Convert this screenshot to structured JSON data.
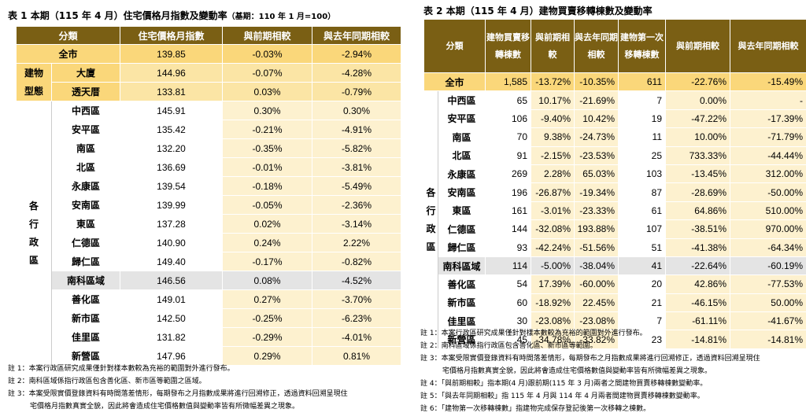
{
  "table1": {
    "title": "表 1 本期（115 年 4 月）住宅價格月指數及變動率",
    "base_note": "（基期：110 年 1 月=100）",
    "headers": [
      "分類",
      "住宅價格月指數",
      "與前期相較",
      "與去年同期相較"
    ],
    "total": {
      "name": "全市",
      "index": "139.85",
      "mom": "-0.03%",
      "yoy": "-2.94%"
    },
    "building_group_label": [
      "建物",
      "型態"
    ],
    "building_rows": [
      {
        "name": "大廈",
        "index": "144.96",
        "mom": "-0.07%",
        "yoy": "-4.28%"
      },
      {
        "name": "透天厝",
        "index": "133.81",
        "mom": "0.03%",
        "yoy": "-0.79%"
      }
    ],
    "district_group_label": [
      "各",
      "行",
      "政",
      "區"
    ],
    "district_rows": [
      {
        "name": "中西區",
        "index": "145.91",
        "mom": "0.30%",
        "yoy": "0.30%"
      },
      {
        "name": "安平區",
        "index": "135.42",
        "mom": "-0.21%",
        "yoy": "-4.91%"
      },
      {
        "name": "南區",
        "index": "132.20",
        "mom": "-0.35%",
        "yoy": "-5.82%"
      },
      {
        "name": "北區",
        "index": "136.69",
        "mom": "-0.01%",
        "yoy": "-3.81%"
      },
      {
        "name": "永康區",
        "index": "139.54",
        "mom": "-0.18%",
        "yoy": "-5.49%"
      },
      {
        "name": "安南區",
        "index": "139.99",
        "mom": "-0.05%",
        "yoy": "-2.36%"
      },
      {
        "name": "東區",
        "index": "137.28",
        "mom": "0.02%",
        "yoy": "-3.14%"
      },
      {
        "name": "仁德區",
        "index": "140.90",
        "mom": "0.24%",
        "yoy": "2.22%"
      },
      {
        "name": "歸仁區",
        "index": "149.40",
        "mom": "-0.17%",
        "yoy": "-0.82%"
      },
      {
        "name": "南科區域",
        "index": "146.56",
        "mom": "0.08%",
        "yoy": "-4.52%",
        "highlight": true
      },
      {
        "name": "善化區",
        "index": "149.01",
        "mom": "0.27%",
        "yoy": "-3.70%"
      },
      {
        "name": "新市區",
        "index": "142.50",
        "mom": "-0.25%",
        "yoy": "-6.23%"
      },
      {
        "name": "佳里區",
        "index": "131.82",
        "mom": "-0.29%",
        "yoy": "-4.01%"
      },
      {
        "name": "新營區",
        "index": "147.96",
        "mom": "0.29%",
        "yoy": "0.81%"
      }
    ],
    "notes": [
      "註 1：本案行政區研究成果僅針對樣本數較為充裕的範圍對外進行發布。",
      "註 2：南科區域係指行政區包含善化區、新市區等範圍之區域。",
      "註 3：本案受限實價登錄資料有時間落差情形，每期發布之月指數成果將進行回溯修正，透過資料回溯呈現住",
      "宅價格月指數真實全貌，因此將會造成住宅價格數值與變動率皆有所微幅差異之現象。"
    ]
  },
  "table2": {
    "title": "表 2 本期（115 年 4 月）建物買賣移轉棟數及變動率",
    "headers": [
      "分類",
      "建物買賣移轉棟數",
      "與前期相較",
      "與去年同期相較",
      "建物第一次移轉棟數",
      "與前期相較",
      "與去年同期相較"
    ],
    "total": {
      "name": "全市",
      "cnt": "1,585",
      "mom": "-13.72%",
      "yoy": "-10.35%",
      "first": "611",
      "fmom": "-22.76%",
      "fyoy": "-15.49%"
    },
    "district_group_label": [
      "各",
      "行",
      "政",
      "區"
    ],
    "rows": [
      {
        "name": "中西區",
        "cnt": "65",
        "mom": "10.17%",
        "yoy": "-21.69%",
        "first": "7",
        "fmom": "0.00%",
        "fyoy": "-"
      },
      {
        "name": "安平區",
        "cnt": "106",
        "mom": "-9.40%",
        "yoy": "10.42%",
        "first": "19",
        "fmom": "-47.22%",
        "fyoy": "-17.39%"
      },
      {
        "name": "南區",
        "cnt": "70",
        "mom": "9.38%",
        "yoy": "-24.73%",
        "first": "11",
        "fmom": "10.00%",
        "fyoy": "-71.79%"
      },
      {
        "name": "北區",
        "cnt": "91",
        "mom": "-2.15%",
        "yoy": "-23.53%",
        "first": "25",
        "fmom": "733.33%",
        "fyoy": "-44.44%"
      },
      {
        "name": "永康區",
        "cnt": "269",
        "mom": "2.28%",
        "yoy": "65.03%",
        "first": "103",
        "fmom": "-13.45%",
        "fyoy": "312.00%"
      },
      {
        "name": "安南區",
        "cnt": "196",
        "mom": "-26.87%",
        "yoy": "-19.34%",
        "first": "87",
        "fmom": "-28.69%",
        "fyoy": "-50.00%"
      },
      {
        "name": "東區",
        "cnt": "161",
        "mom": "-3.01%",
        "yoy": "-23.33%",
        "first": "61",
        "fmom": "64.86%",
        "fyoy": "510.00%"
      },
      {
        "name": "仁德區",
        "cnt": "144",
        "mom": "-32.08%",
        "yoy": "193.88%",
        "first": "107",
        "fmom": "-38.51%",
        "fyoy": "970.00%"
      },
      {
        "name": "歸仁區",
        "cnt": "93",
        "mom": "-42.24%",
        "yoy": "-51.56%",
        "first": "51",
        "fmom": "-41.38%",
        "fyoy": "-64.34%"
      },
      {
        "name": "南科區域",
        "cnt": "114",
        "mom": "-5.00%",
        "yoy": "-38.04%",
        "first": "41",
        "fmom": "-22.64%",
        "fyoy": "-60.19%",
        "highlight": true
      },
      {
        "name": "善化區",
        "cnt": "54",
        "mom": "17.39%",
        "yoy": "-60.00%",
        "first": "20",
        "fmom": "42.86%",
        "fyoy": "-77.53%"
      },
      {
        "name": "新市區",
        "cnt": "60",
        "mom": "-18.92%",
        "yoy": "22.45%",
        "first": "21",
        "fmom": "-46.15%",
        "fyoy": "50.00%"
      },
      {
        "name": "佳里區",
        "cnt": "30",
        "mom": "-23.08%",
        "yoy": "-23.08%",
        "first": "7",
        "fmom": "-61.11%",
        "fyoy": "-41.67%"
      },
      {
        "name": "新營區",
        "cnt": "45",
        "mom": "-34.78%",
        "yoy": "-33.82%",
        "first": "23",
        "fmom": "-14.81%",
        "fyoy": "-14.81%"
      }
    ],
    "notes": [
      "註 1：本案行政區研究成果僅針對樣本數較為充裕的範圍對外進行發布。",
      "註 2：南科區域係指行政區包含善化區、新市區等範圍。",
      "註 3：本案受限實價登錄資料有時間落差情形，每期發布之月指數成果將進行回溯修正，透過資料回溯呈現住",
      "宅價格月指數真實全貌，因此將會造成住宅價格數值與變動率皆有所微幅差異之現象。",
      "註 4：「與前期相較」指本期(4 月)跟前期(115 年 3 月)兩者之間建物買賣移轉棟數變動率。",
      "註 5：「與去年同期相較」指 115 年 4 月與 114 年 4 月兩者間建物買賣移轉棟數變動率。",
      "註 6：「建物第一次移轉棟數」指建物完成保存登記後第一次移轉之棟數。"
    ]
  }
}
